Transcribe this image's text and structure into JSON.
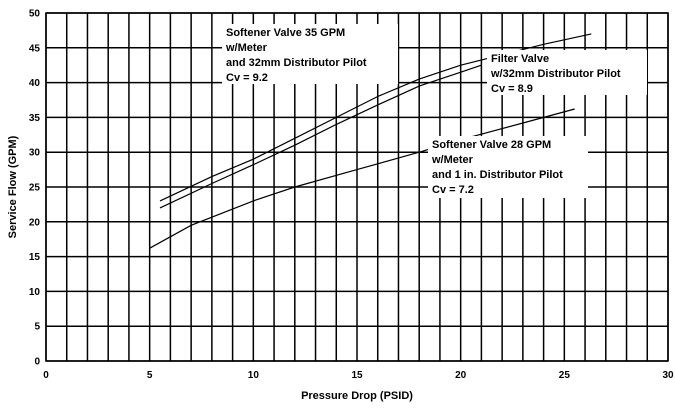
{
  "chart_data": {
    "type": "line",
    "xlabel": "Pressure Drop (PSID)",
    "ylabel": "Service Flow (GPM)",
    "xlim": [
      0,
      30
    ],
    "ylim": [
      0,
      50
    ],
    "x_ticks": [
      0,
      5,
      10,
      15,
      20,
      25,
      30
    ],
    "y_ticks": [
      0,
      5,
      10,
      15,
      20,
      25,
      30,
      35,
      40,
      45,
      50
    ],
    "grid": "on",
    "series": [
      {
        "name": "Softener Valve 35 GPM",
        "points": [
          [
            5.5,
            23
          ],
          [
            8,
            26.5
          ],
          [
            10,
            29
          ],
          [
            12,
            32
          ],
          [
            14,
            35
          ],
          [
            16,
            38
          ],
          [
            18,
            40.5
          ],
          [
            20,
            42.5
          ],
          [
            22,
            44
          ],
          [
            24,
            45.5
          ],
          [
            26.3,
            47
          ]
        ]
      },
      {
        "name": "Filter Valve",
        "points": [
          [
            5.5,
            22
          ],
          [
            8,
            25.5
          ],
          [
            10,
            28.2
          ],
          [
            12,
            31
          ],
          [
            14,
            34
          ],
          [
            16,
            36.8
          ],
          [
            18,
            39.5
          ],
          [
            20,
            41.5
          ],
          [
            21,
            42.5
          ]
        ]
      },
      {
        "name": "Softener Valve 28 GPM",
        "points": [
          [
            5,
            16.2
          ],
          [
            7,
            19.5
          ],
          [
            10,
            23
          ],
          [
            12,
            25
          ],
          [
            15,
            27.5
          ],
          [
            18,
            30
          ],
          [
            20,
            31.8
          ],
          [
            23,
            34.2
          ],
          [
            25.5,
            36.2
          ]
        ]
      }
    ],
    "annotations": [
      {
        "id": "softener35",
        "lines": [
          "Softener Valve 35 GPM",
          "w/Meter",
          "and 32mm Distributor Pilot",
          "Cv = 9.2"
        ]
      },
      {
        "id": "filter",
        "lines": [
          "Filter Valve",
          "w/32mm Distributor Pilot",
          "Cv = 8.9"
        ]
      },
      {
        "id": "softener28",
        "lines": [
          "Softener Valve 28 GPM",
          "w/Meter",
          "and 1 in. Distributor Pilot",
          "Cv = 7.2"
        ]
      }
    ]
  }
}
